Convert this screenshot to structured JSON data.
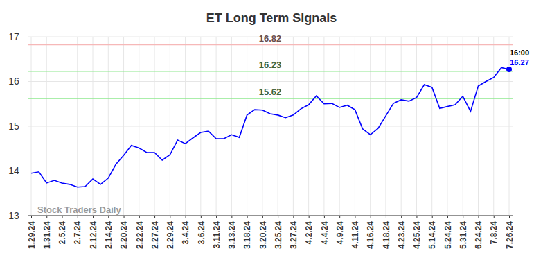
{
  "chart_data": {
    "type": "line",
    "title": "ET Long Term Signals",
    "categories": [
      "1.29.24",
      null,
      "1.31.24",
      null,
      "2.5.24",
      null,
      "2.7.24",
      null,
      "2.12.24",
      null,
      "2.14.24",
      null,
      "2.20.24",
      null,
      "2.22.24",
      null,
      "2.27.24",
      null,
      "2.29.24",
      null,
      "3.4.24",
      null,
      "3.6.24",
      null,
      "3.11.24",
      null,
      "3.13.24",
      null,
      "3.18.24",
      null,
      "3.20.24",
      null,
      "3.25.24",
      null,
      "3.27.24",
      null,
      "4.2.24",
      null,
      "4.4.24",
      null,
      "4.9.24",
      null,
      "4.11.24",
      null,
      "4.16.24",
      null,
      "4.18.24",
      null,
      "4.23.24",
      null,
      "4.25.24",
      null,
      "5.14.24",
      null,
      "5.24.24",
      null,
      "5.31.24",
      null,
      "6.24.24",
      null,
      "7.8.24",
      null,
      "7.26.24"
    ],
    "values": [
      13.95,
      13.98,
      13.73,
      13.79,
      13.73,
      13.7,
      13.64,
      13.65,
      13.82,
      13.7,
      13.84,
      14.15,
      14.35,
      14.57,
      14.51,
      14.41,
      14.41,
      14.24,
      14.36,
      14.69,
      14.61,
      14.74,
      14.86,
      14.89,
      14.72,
      14.72,
      14.81,
      14.75,
      15.25,
      15.37,
      15.36,
      15.28,
      15.25,
      15.19,
      15.25,
      15.39,
      15.48,
      15.68,
      15.5,
      15.51,
      15.42,
      15.47,
      15.37,
      14.94,
      14.81,
      14.95,
      15.23,
      15.51,
      15.59,
      15.56,
      15.64,
      15.93,
      15.87,
      15.4,
      15.44,
      15.48,
      15.67,
      15.33,
      15.9,
      16.0,
      16.09,
      16.31,
      16.27
    ],
    "color": "#0000ff",
    "marker": "none",
    "line_style": "solid",
    "ylim": [
      13,
      17
    ],
    "yticks": [
      13,
      14,
      15,
      16,
      17
    ],
    "grid": true,
    "reference_lines": [
      {
        "value": 16.82,
        "color": "#f6b8b8"
      },
      {
        "value": 16.23,
        "color": "#8ee88e"
      },
      {
        "value": 15.62,
        "color": "#8ee88e"
      }
    ],
    "last_time": "16:00",
    "watermark": "Stock Traders Daily"
  }
}
